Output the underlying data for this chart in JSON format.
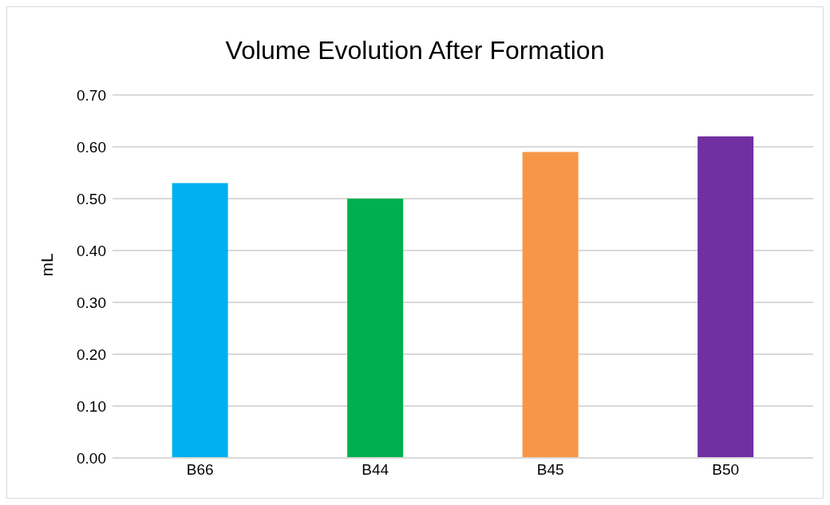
{
  "chart_data": {
    "type": "bar",
    "title": "Volume Evolution After Formation",
    "ylabel": "mL",
    "categories": [
      "B66",
      "B44",
      "B45",
      "B50"
    ],
    "values": [
      0.53,
      0.5,
      0.59,
      0.62
    ],
    "colors": [
      "#00b0f0",
      "#00b050",
      "#f79646",
      "#7030a0"
    ],
    "ylim": [
      0,
      0.7
    ],
    "yticks": [
      {
        "value": 0,
        "label": "0.00"
      },
      {
        "value": 0.1,
        "label": "0.10"
      },
      {
        "value": 0.2,
        "label": "0.20"
      },
      {
        "value": 0.3,
        "label": "0.30"
      },
      {
        "value": 0.4,
        "label": "0.40"
      },
      {
        "value": 0.5,
        "label": "0.50"
      },
      {
        "value": 0.6,
        "label": "0.60"
      },
      {
        "value": 0.7,
        "label": "0.70"
      }
    ],
    "grid": "y"
  }
}
